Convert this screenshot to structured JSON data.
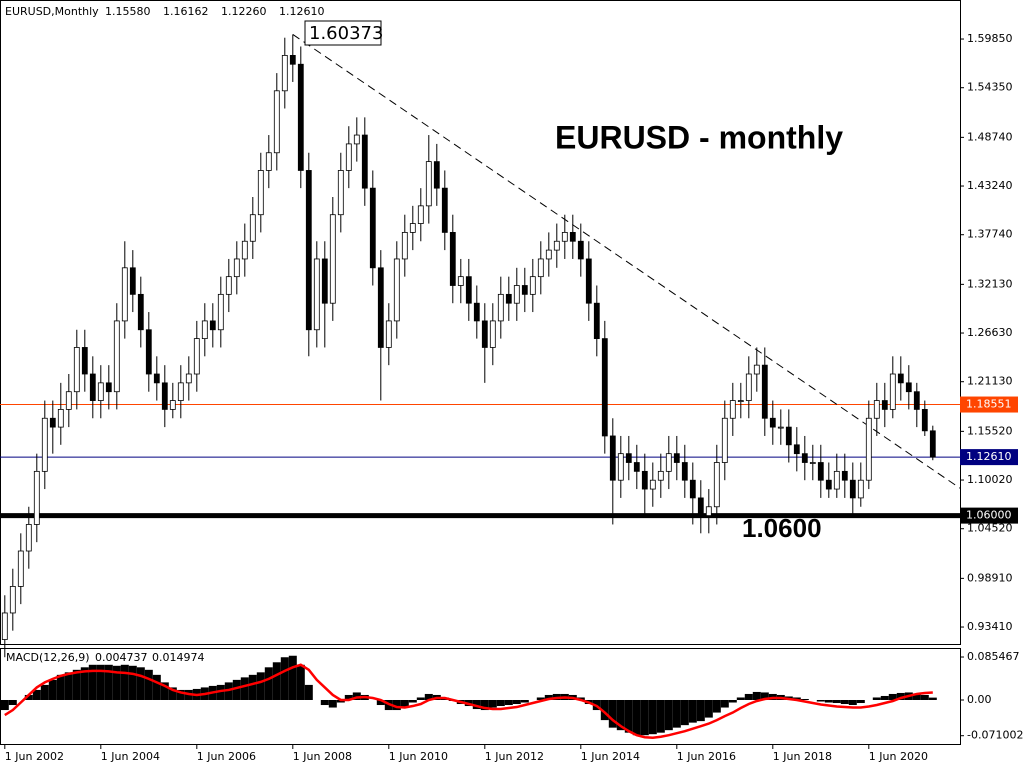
{
  "chart_data": [
    {
      "type": "candlestick",
      "title": "EURUSD,Monthly",
      "header_values": [
        "1.15580",
        "1.16162",
        "1.12260",
        "1.12610"
      ],
      "annotation": "EURUSD - monthly",
      "support_label": "1.0600",
      "peak_label": "1.60373",
      "up_color": "#ffffff",
      "down_color": "#000000",
      "xlim": [
        -0.6,
        119.4
      ],
      "ylim": [
        0.9138,
        1.6426
      ],
      "yticks": [
        {
          "value": 1.5985,
          "label": "1.59850"
        },
        {
          "value": 1.5435,
          "label": "1.54350"
        },
        {
          "value": 1.4874,
          "label": "1.48740"
        },
        {
          "value": 1.4324,
          "label": "1.43240"
        },
        {
          "value": 1.3774,
          "label": "1.37740"
        },
        {
          "value": 1.3213,
          "label": "1.32130"
        },
        {
          "value": 1.2663,
          "label": "1.26630"
        },
        {
          "value": 1.2113,
          "label": "1.21130"
        },
        {
          "value": 1.1552,
          "label": "1.15520"
        },
        {
          "value": 1.1002,
          "label": "1.10020"
        },
        {
          "value": 1.0452,
          "label": "1.04520"
        },
        {
          "value": 0.9891,
          "label": "0.98910"
        },
        {
          "value": 0.9341,
          "label": "0.93410"
        }
      ],
      "levels": [
        {
          "value": 1.18551,
          "label": "1.18551",
          "color": "#ff4500",
          "line_width": 1
        },
        {
          "value": 1.1261,
          "label": "1.12610",
          "color": "#000080",
          "line_width": 1
        },
        {
          "value": 1.06,
          "label": "1.06000",
          "color": "#000000",
          "line_width": 5
        }
      ],
      "trendline": {
        "x": [
          36,
          119.4
        ],
        "y": [
          1.60373,
          1.091
        ]
      },
      "candles": [
        [
          0.92,
          0.97,
          0.9,
          0.95
        ],
        [
          0.95,
          1.0,
          0.93,
          0.98
        ],
        [
          0.98,
          1.04,
          0.96,
          1.02
        ],
        [
          1.02,
          1.07,
          1.0,
          1.05
        ],
        [
          1.05,
          1.13,
          1.03,
          1.11
        ],
        [
          1.11,
          1.19,
          1.09,
          1.17
        ],
        [
          1.17,
          1.19,
          1.13,
          1.16
        ],
        [
          1.16,
          1.21,
          1.14,
          1.18
        ],
        [
          1.18,
          1.22,
          1.16,
          1.2
        ],
        [
          1.2,
          1.27,
          1.18,
          1.25
        ],
        [
          1.25,
          1.27,
          1.2,
          1.22
        ],
        [
          1.22,
          1.24,
          1.17,
          1.19
        ],
        [
          1.19,
          1.23,
          1.17,
          1.21
        ],
        [
          1.21,
          1.23,
          1.18,
          1.2
        ],
        [
          1.2,
          1.3,
          1.18,
          1.28
        ],
        [
          1.28,
          1.37,
          1.26,
          1.34
        ],
        [
          1.34,
          1.36,
          1.29,
          1.31
        ],
        [
          1.31,
          1.33,
          1.25,
          1.27
        ],
        [
          1.27,
          1.29,
          1.2,
          1.22
        ],
        [
          1.22,
          1.24,
          1.19,
          1.21
        ],
        [
          1.21,
          1.23,
          1.16,
          1.18
        ],
        [
          1.18,
          1.21,
          1.17,
          1.19
        ],
        [
          1.19,
          1.23,
          1.17,
          1.21
        ],
        [
          1.21,
          1.24,
          1.19,
          1.22
        ],
        [
          1.22,
          1.28,
          1.2,
          1.26
        ],
        [
          1.26,
          1.3,
          1.24,
          1.28
        ],
        [
          1.28,
          1.3,
          1.25,
          1.27
        ],
        [
          1.27,
          1.33,
          1.25,
          1.31
        ],
        [
          1.31,
          1.35,
          1.29,
          1.33
        ],
        [
          1.33,
          1.37,
          1.31,
          1.35
        ],
        [
          1.35,
          1.39,
          1.33,
          1.37
        ],
        [
          1.37,
          1.42,
          1.35,
          1.4
        ],
        [
          1.4,
          1.47,
          1.38,
          1.45
        ],
        [
          1.45,
          1.49,
          1.43,
          1.47
        ],
        [
          1.47,
          1.56,
          1.45,
          1.54
        ],
        [
          1.54,
          1.6,
          1.52,
          1.58
        ],
        [
          1.58,
          1.60373,
          1.55,
          1.57
        ],
        [
          1.57,
          1.59,
          1.43,
          1.45
        ],
        [
          1.45,
          1.47,
          1.24,
          1.27
        ],
        [
          1.27,
          1.37,
          1.25,
          1.35
        ],
        [
          1.35,
          1.37,
          1.25,
          1.3
        ],
        [
          1.3,
          1.42,
          1.28,
          1.4
        ],
        [
          1.4,
          1.47,
          1.38,
          1.45
        ],
        [
          1.45,
          1.5,
          1.43,
          1.48
        ],
        [
          1.48,
          1.51,
          1.46,
          1.49
        ],
        [
          1.49,
          1.51,
          1.41,
          1.43
        ],
        [
          1.43,
          1.45,
          1.32,
          1.34
        ],
        [
          1.34,
          1.36,
          1.19,
          1.25
        ],
        [
          1.25,
          1.3,
          1.23,
          1.28
        ],
        [
          1.28,
          1.37,
          1.26,
          1.35
        ],
        [
          1.35,
          1.4,
          1.33,
          1.38
        ],
        [
          1.38,
          1.41,
          1.36,
          1.39
        ],
        [
          1.39,
          1.43,
          1.37,
          1.41
        ],
        [
          1.41,
          1.49,
          1.39,
          1.46
        ],
        [
          1.46,
          1.48,
          1.41,
          1.43
        ],
        [
          1.43,
          1.45,
          1.36,
          1.38
        ],
        [
          1.38,
          1.4,
          1.3,
          1.32
        ],
        [
          1.32,
          1.35,
          1.3,
          1.33
        ],
        [
          1.33,
          1.35,
          1.28,
          1.3
        ],
        [
          1.3,
          1.32,
          1.26,
          1.28
        ],
        [
          1.28,
          1.3,
          1.21,
          1.25
        ],
        [
          1.25,
          1.3,
          1.23,
          1.28
        ],
        [
          1.28,
          1.33,
          1.26,
          1.31
        ],
        [
          1.31,
          1.33,
          1.28,
          1.3
        ],
        [
          1.3,
          1.34,
          1.28,
          1.32
        ],
        [
          1.32,
          1.34,
          1.29,
          1.31
        ],
        [
          1.31,
          1.35,
          1.29,
          1.33
        ],
        [
          1.33,
          1.37,
          1.31,
          1.35
        ],
        [
          1.35,
          1.38,
          1.33,
          1.36
        ],
        [
          1.36,
          1.39,
          1.34,
          1.37
        ],
        [
          1.37,
          1.4,
          1.35,
          1.38
        ],
        [
          1.38,
          1.4,
          1.35,
          1.37
        ],
        [
          1.37,
          1.39,
          1.33,
          1.35
        ],
        [
          1.35,
          1.37,
          1.28,
          1.3
        ],
        [
          1.3,
          1.32,
          1.24,
          1.26
        ],
        [
          1.26,
          1.28,
          1.13,
          1.15
        ],
        [
          1.15,
          1.17,
          1.05,
          1.1
        ],
        [
          1.1,
          1.15,
          1.08,
          1.13
        ],
        [
          1.13,
          1.15,
          1.1,
          1.12
        ],
        [
          1.12,
          1.14,
          1.09,
          1.11
        ],
        [
          1.11,
          1.13,
          1.06,
          1.09
        ],
        [
          1.09,
          1.12,
          1.07,
          1.1
        ],
        [
          1.1,
          1.13,
          1.08,
          1.11
        ],
        [
          1.11,
          1.15,
          1.09,
          1.13
        ],
        [
          1.13,
          1.15,
          1.1,
          1.12
        ],
        [
          1.12,
          1.14,
          1.08,
          1.1
        ],
        [
          1.1,
          1.12,
          1.05,
          1.08
        ],
        [
          1.08,
          1.1,
          1.04,
          1.06
        ],
        [
          1.06,
          1.09,
          1.04,
          1.07
        ],
        [
          1.07,
          1.14,
          1.05,
          1.12
        ],
        [
          1.12,
          1.19,
          1.1,
          1.17
        ],
        [
          1.17,
          1.21,
          1.15,
          1.19
        ],
        [
          1.19,
          1.21,
          1.17,
          1.19
        ],
        [
          1.19,
          1.24,
          1.17,
          1.22
        ],
        [
          1.22,
          1.25,
          1.2,
          1.23
        ],
        [
          1.23,
          1.25,
          1.15,
          1.17
        ],
        [
          1.17,
          1.19,
          1.14,
          1.16
        ],
        [
          1.16,
          1.18,
          1.14,
          1.16
        ],
        [
          1.16,
          1.18,
          1.12,
          1.14
        ],
        [
          1.14,
          1.16,
          1.11,
          1.13
        ],
        [
          1.13,
          1.15,
          1.1,
          1.12
        ],
        [
          1.12,
          1.14,
          1.1,
          1.12
        ],
        [
          1.12,
          1.14,
          1.08,
          1.1
        ],
        [
          1.1,
          1.12,
          1.08,
          1.09
        ],
        [
          1.09,
          1.13,
          1.08,
          1.11
        ],
        [
          1.11,
          1.13,
          1.08,
          1.1
        ],
        [
          1.1,
          1.12,
          1.06,
          1.08
        ],
        [
          1.08,
          1.12,
          1.07,
          1.1
        ],
        [
          1.1,
          1.19,
          1.09,
          1.17
        ],
        [
          1.17,
          1.21,
          1.15,
          1.19
        ],
        [
          1.19,
          1.21,
          1.16,
          1.18
        ],
        [
          1.18,
          1.24,
          1.17,
          1.22
        ],
        [
          1.22,
          1.24,
          1.19,
          1.21
        ],
        [
          1.21,
          1.23,
          1.18,
          1.2
        ],
        [
          1.2,
          1.21,
          1.16,
          1.18
        ],
        [
          1.18,
          1.19,
          1.15,
          1.1558
        ],
        [
          1.1558,
          1.16162,
          1.1226,
          1.1261
        ]
      ]
    },
    {
      "type": "macd",
      "title": "MACD(12,26,9)",
      "value_labels": [
        "0.004737",
        "0.014974"
      ],
      "xlim": [
        -0.6,
        119.4
      ],
      "ylim": [
        -0.0895,
        0.1034
      ],
      "yticks": [
        0.085467,
        {
          "value": 0,
          "label": "0.00"
        },
        -0.071002
      ],
      "xticks": [
        {
          "value": 0,
          "label": "1 Jun 2002"
        },
        {
          "value": 12,
          "label": "1 Jun 2004"
        },
        {
          "value": 24,
          "label": "1 Jun 2006"
        },
        {
          "value": 36,
          "label": "1 Jun 2008"
        },
        {
          "value": 48,
          "label": "1 Jun 2010"
        },
        {
          "value": 60,
          "label": "1 Jun 2012"
        },
        {
          "value": 72,
          "label": "1 Jun 2014"
        },
        {
          "value": 84,
          "label": "1 Jun 2016"
        },
        {
          "value": 96,
          "label": "1 Jun 2018"
        },
        {
          "value": 108,
          "label": "1 Jun 2020"
        }
      ],
      "histogram": {
        "color": "#000000",
        "values": [
          -0.02,
          -0.01,
          0.0,
          0.01,
          0.02,
          0.03,
          0.04,
          0.05,
          0.055,
          0.06,
          0.065,
          0.07,
          0.07,
          0.07,
          0.068,
          0.07,
          0.068,
          0.065,
          0.06,
          0.05,
          0.035,
          0.025,
          0.02,
          0.02,
          0.022,
          0.025,
          0.028,
          0.03,
          0.035,
          0.04,
          0.045,
          0.05,
          0.055,
          0.065,
          0.075,
          0.085,
          0.088,
          0.07,
          0.03,
          0.0,
          -0.01,
          -0.015,
          -0.005,
          0.01,
          0.015,
          0.01,
          0.0,
          -0.01,
          -0.02,
          -0.02,
          -0.015,
          -0.005,
          0.005,
          0.012,
          0.01,
          0.005,
          -0.002,
          -0.008,
          -0.012,
          -0.018,
          -0.02,
          -0.015,
          -0.012,
          -0.01,
          -0.008,
          -0.005,
          0.0,
          0.005,
          0.01,
          0.012,
          0.012,
          0.01,
          0.005,
          -0.008,
          -0.02,
          -0.04,
          -0.055,
          -0.06,
          -0.065,
          -0.07,
          -0.07,
          -0.068,
          -0.065,
          -0.06,
          -0.055,
          -0.05,
          -0.045,
          -0.042,
          -0.035,
          -0.025,
          -0.015,
          -0.005,
          0.005,
          0.012,
          0.016,
          0.015,
          0.012,
          0.01,
          0.007,
          0.005,
          0.002,
          0.0,
          -0.003,
          -0.005,
          -0.006,
          -0.008,
          -0.01,
          -0.006,
          0.0,
          0.005,
          0.008,
          0.012,
          0.014,
          0.015,
          0.013,
          0.01,
          0.004737
        ]
      },
      "signal": {
        "color": "#ff0000",
        "values": [
          -0.03,
          -0.02,
          -0.005,
          0.01,
          0.025,
          0.035,
          0.042,
          0.048,
          0.052,
          0.055,
          0.057,
          0.058,
          0.058,
          0.057,
          0.055,
          0.054,
          0.052,
          0.048,
          0.042,
          0.035,
          0.028,
          0.02,
          0.015,
          0.012,
          0.01,
          0.012,
          0.015,
          0.018,
          0.02,
          0.024,
          0.028,
          0.032,
          0.036,
          0.042,
          0.05,
          0.058,
          0.065,
          0.07,
          0.06,
          0.04,
          0.025,
          0.01,
          0.0,
          0.0,
          0.005,
          0.006,
          0.004,
          0.0,
          -0.008,
          -0.014,
          -0.015,
          -0.012,
          -0.008,
          0.0,
          0.004,
          0.004,
          0.0,
          -0.004,
          -0.008,
          -0.012,
          -0.016,
          -0.018,
          -0.018,
          -0.016,
          -0.014,
          -0.01,
          -0.006,
          -0.002,
          0.002,
          0.004,
          0.005,
          0.004,
          0.0,
          -0.005,
          -0.012,
          -0.025,
          -0.04,
          -0.052,
          -0.062,
          -0.07,
          -0.074,
          -0.075,
          -0.073,
          -0.07,
          -0.066,
          -0.062,
          -0.057,
          -0.052,
          -0.047,
          -0.04,
          -0.032,
          -0.025,
          -0.016,
          -0.008,
          -0.002,
          0.002,
          0.004,
          0.004,
          0.002,
          0.0,
          -0.003,
          -0.006,
          -0.009,
          -0.011,
          -0.013,
          -0.014,
          -0.015,
          -0.015,
          -0.013,
          -0.01,
          -0.006,
          -0.002,
          0.004,
          0.008,
          0.012,
          0.014,
          0.014974
        ]
      }
    }
  ]
}
